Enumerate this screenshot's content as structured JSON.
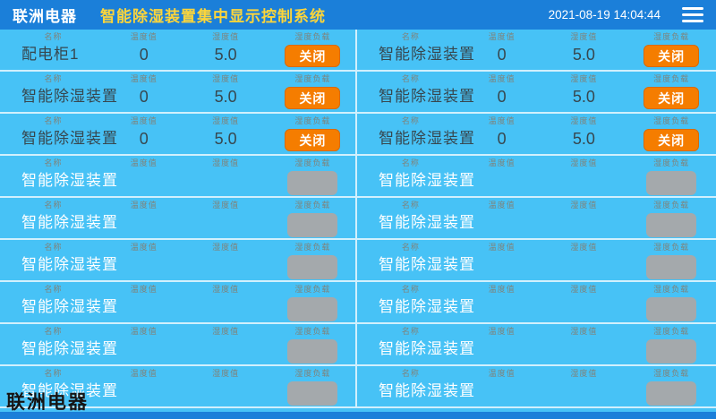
{
  "header": {
    "brand": "联洲电器",
    "title": "智能除湿装置集中显示控制系统",
    "timestamp": "2021-08-19 14:04:44",
    "menu_icon": "hamburger-icon"
  },
  "labels": {
    "name": "名称",
    "temperature": "温度值",
    "humidity": "湿度值",
    "load": "湿度负载"
  },
  "watermark": "联洲电器",
  "colors": {
    "header_bg": "#1b7fd9",
    "body_bg": "#47c2f6",
    "title_yellow": "#fdd53a",
    "caption_orange": "rgba(165,88,40,0.6)",
    "button_active": "#f57d00",
    "button_disabled": "#a4a9ac"
  },
  "devices": [
    {
      "name": "配电柜1",
      "temperature": "0",
      "humidity": "5.0",
      "button_label": "关闭",
      "active": true
    },
    {
      "name": "智能除湿装置",
      "temperature": "0",
      "humidity": "5.0",
      "button_label": "关闭",
      "active": true
    },
    {
      "name": "智能除湿装置",
      "temperature": "0",
      "humidity": "5.0",
      "button_label": "关闭",
      "active": true
    },
    {
      "name": "智能除湿装置",
      "temperature": "0",
      "humidity": "5.0",
      "button_label": "关闭",
      "active": true
    },
    {
      "name": "智能除湿装置",
      "temperature": "0",
      "humidity": "5.0",
      "button_label": "关闭",
      "active": true
    },
    {
      "name": "智能除湿装置",
      "temperature": "0",
      "humidity": "5.0",
      "button_label": "关闭",
      "active": true
    },
    {
      "name": "智能除湿装置",
      "temperature": "",
      "humidity": "",
      "button_label": "",
      "active": false
    },
    {
      "name": "智能除湿装置",
      "temperature": "",
      "humidity": "",
      "button_label": "",
      "active": false
    },
    {
      "name": "智能除湿装置",
      "temperature": "",
      "humidity": "",
      "button_label": "",
      "active": false
    },
    {
      "name": "智能除湿装置",
      "temperature": "",
      "humidity": "",
      "button_label": "",
      "active": false
    },
    {
      "name": "智能除湿装置",
      "temperature": "",
      "humidity": "",
      "button_label": "",
      "active": false
    },
    {
      "name": "智能除湿装置",
      "temperature": "",
      "humidity": "",
      "button_label": "",
      "active": false
    },
    {
      "name": "智能除湿装置",
      "temperature": "",
      "humidity": "",
      "button_label": "",
      "active": false
    },
    {
      "name": "智能除湿装置",
      "temperature": "",
      "humidity": "",
      "button_label": "",
      "active": false
    },
    {
      "name": "智能除湿装置",
      "temperature": "",
      "humidity": "",
      "button_label": "",
      "active": false
    },
    {
      "name": "智能除湿装置",
      "temperature": "",
      "humidity": "",
      "button_label": "",
      "active": false
    },
    {
      "name": "智能除湿装置",
      "temperature": "",
      "humidity": "",
      "button_label": "",
      "active": false
    },
    {
      "name": "智能除湿装置",
      "temperature": "",
      "humidity": "",
      "button_label": "",
      "active": false
    }
  ]
}
